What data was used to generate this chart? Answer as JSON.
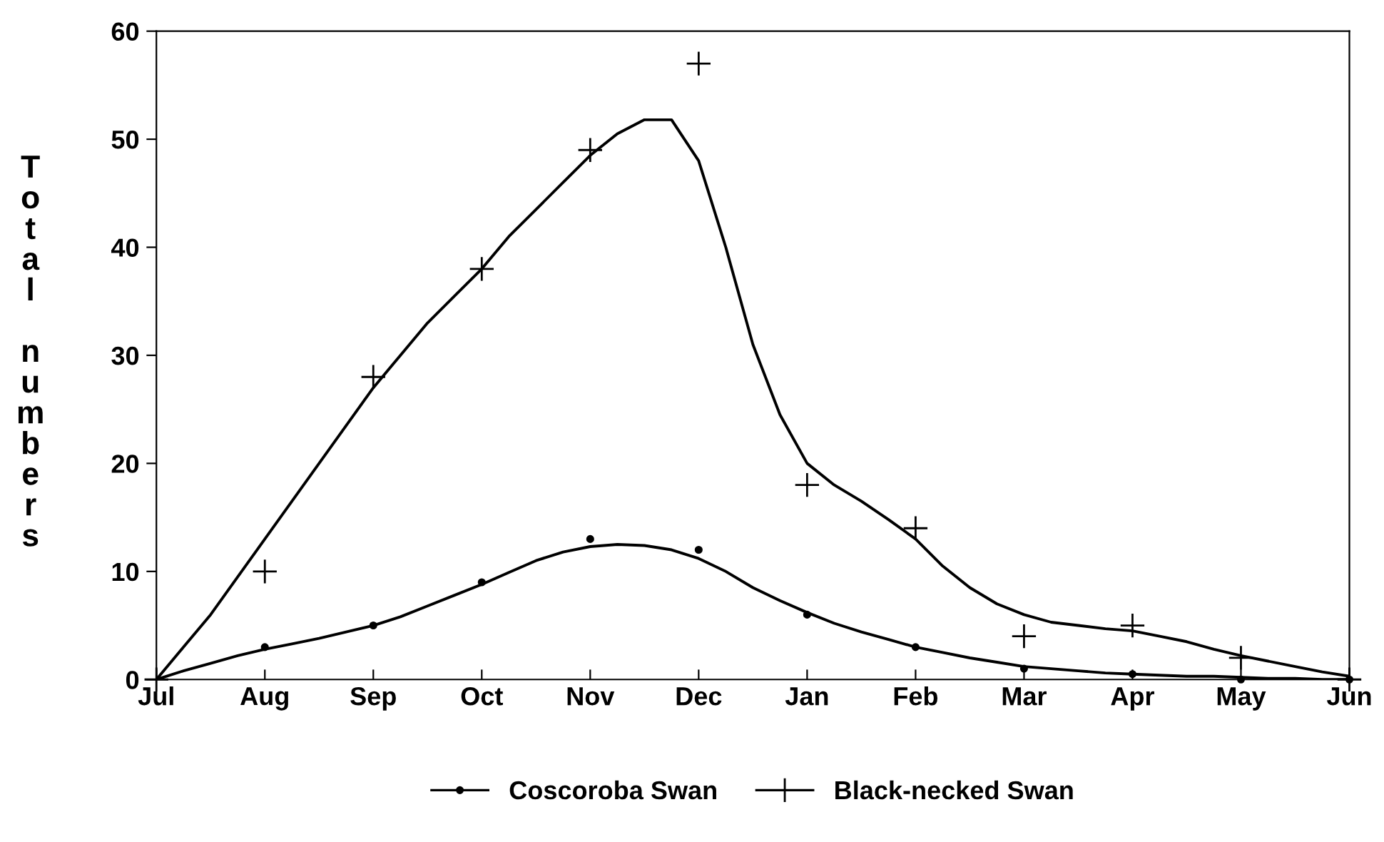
{
  "chart_data": {
    "type": "scatter",
    "ylabel": "Total numbers",
    "categories": [
      "Jul",
      null,
      null,
      null,
      "Aug",
      null,
      null,
      null,
      "Sep",
      null,
      null,
      null,
      "Oct",
      null,
      null,
      null,
      "Nov",
      null,
      null,
      null,
      "Dec",
      null,
      null,
      null,
      "Jan",
      null,
      null,
      null,
      "Feb",
      null,
      null,
      null,
      "Mar",
      null,
      null,
      null,
      "Apr",
      null,
      null,
      null,
      "May",
      null,
      null,
      null,
      "Jun"
    ],
    "ylim": [
      0,
      60
    ],
    "yticks": [
      0,
      10,
      20,
      30,
      40,
      50,
      60
    ],
    "grid": false,
    "legend": "bottom",
    "series": [
      {
        "name": "Coscoroba Swan",
        "marker": "circle",
        "color": "#000000",
        "values": [
          null,
          null,
          null,
          null,
          3,
          null,
          null,
          null,
          5,
          null,
          null,
          null,
          9,
          null,
          null,
          null,
          13,
          null,
          null,
          null,
          12,
          null,
          null,
          null,
          6,
          null,
          null,
          null,
          3,
          null,
          null,
          null,
          1,
          null,
          null,
          null,
          0.5,
          null,
          null,
          null,
          0,
          null,
          null,
          null,
          0
        ]
      },
      {
        "name": "Black-necked Swan",
        "marker": "cross",
        "color": "#000000",
        "values": [
          0,
          null,
          null,
          null,
          10,
          null,
          null,
          null,
          28,
          null,
          null,
          null,
          38,
          null,
          null,
          null,
          49,
          null,
          null,
          null,
          57,
          null,
          null,
          null,
          18,
          null,
          null,
          null,
          14,
          null,
          null,
          null,
          4,
          null,
          null,
          null,
          5,
          null,
          null,
          null,
          2,
          null,
          null,
          null,
          0
        ]
      },
      {
        "type": "line",
        "color": "#000000",
        "values": [
          0,
          0.8,
          1.5,
          2.2,
          2.8,
          3.3,
          3.8,
          4.4,
          5,
          5.8,
          6.8,
          7.8,
          8.8,
          9.9,
          11,
          11.8,
          12.3,
          12.5,
          12.4,
          12,
          11.2,
          10,
          8.5,
          7.3,
          6.2,
          5.2,
          4.4,
          3.7,
          3,
          2.5,
          2,
          1.6,
          1.2,
          1,
          0.8,
          0.6,
          0.5,
          0.4,
          0.3,
          0.3,
          0.2,
          0.1,
          0.1,
          0,
          0
        ]
      },
      {
        "type": "line",
        "color": "#000000",
        "values": [
          0,
          3,
          6,
          9.5,
          13,
          16.5,
          20,
          23.5,
          27,
          30,
          33,
          35.5,
          38,
          41,
          43.5,
          46,
          48.5,
          50.5,
          51.8,
          51.8,
          48,
          40,
          31,
          24.5,
          20,
          18,
          16.5,
          14.8,
          13,
          10.5,
          8.5,
          7,
          6,
          5.3,
          5,
          4.7,
          4.5,
          4,
          3.5,
          2.8,
          2.2,
          1.7,
          1.2,
          0.7,
          0.3
        ]
      }
    ]
  }
}
